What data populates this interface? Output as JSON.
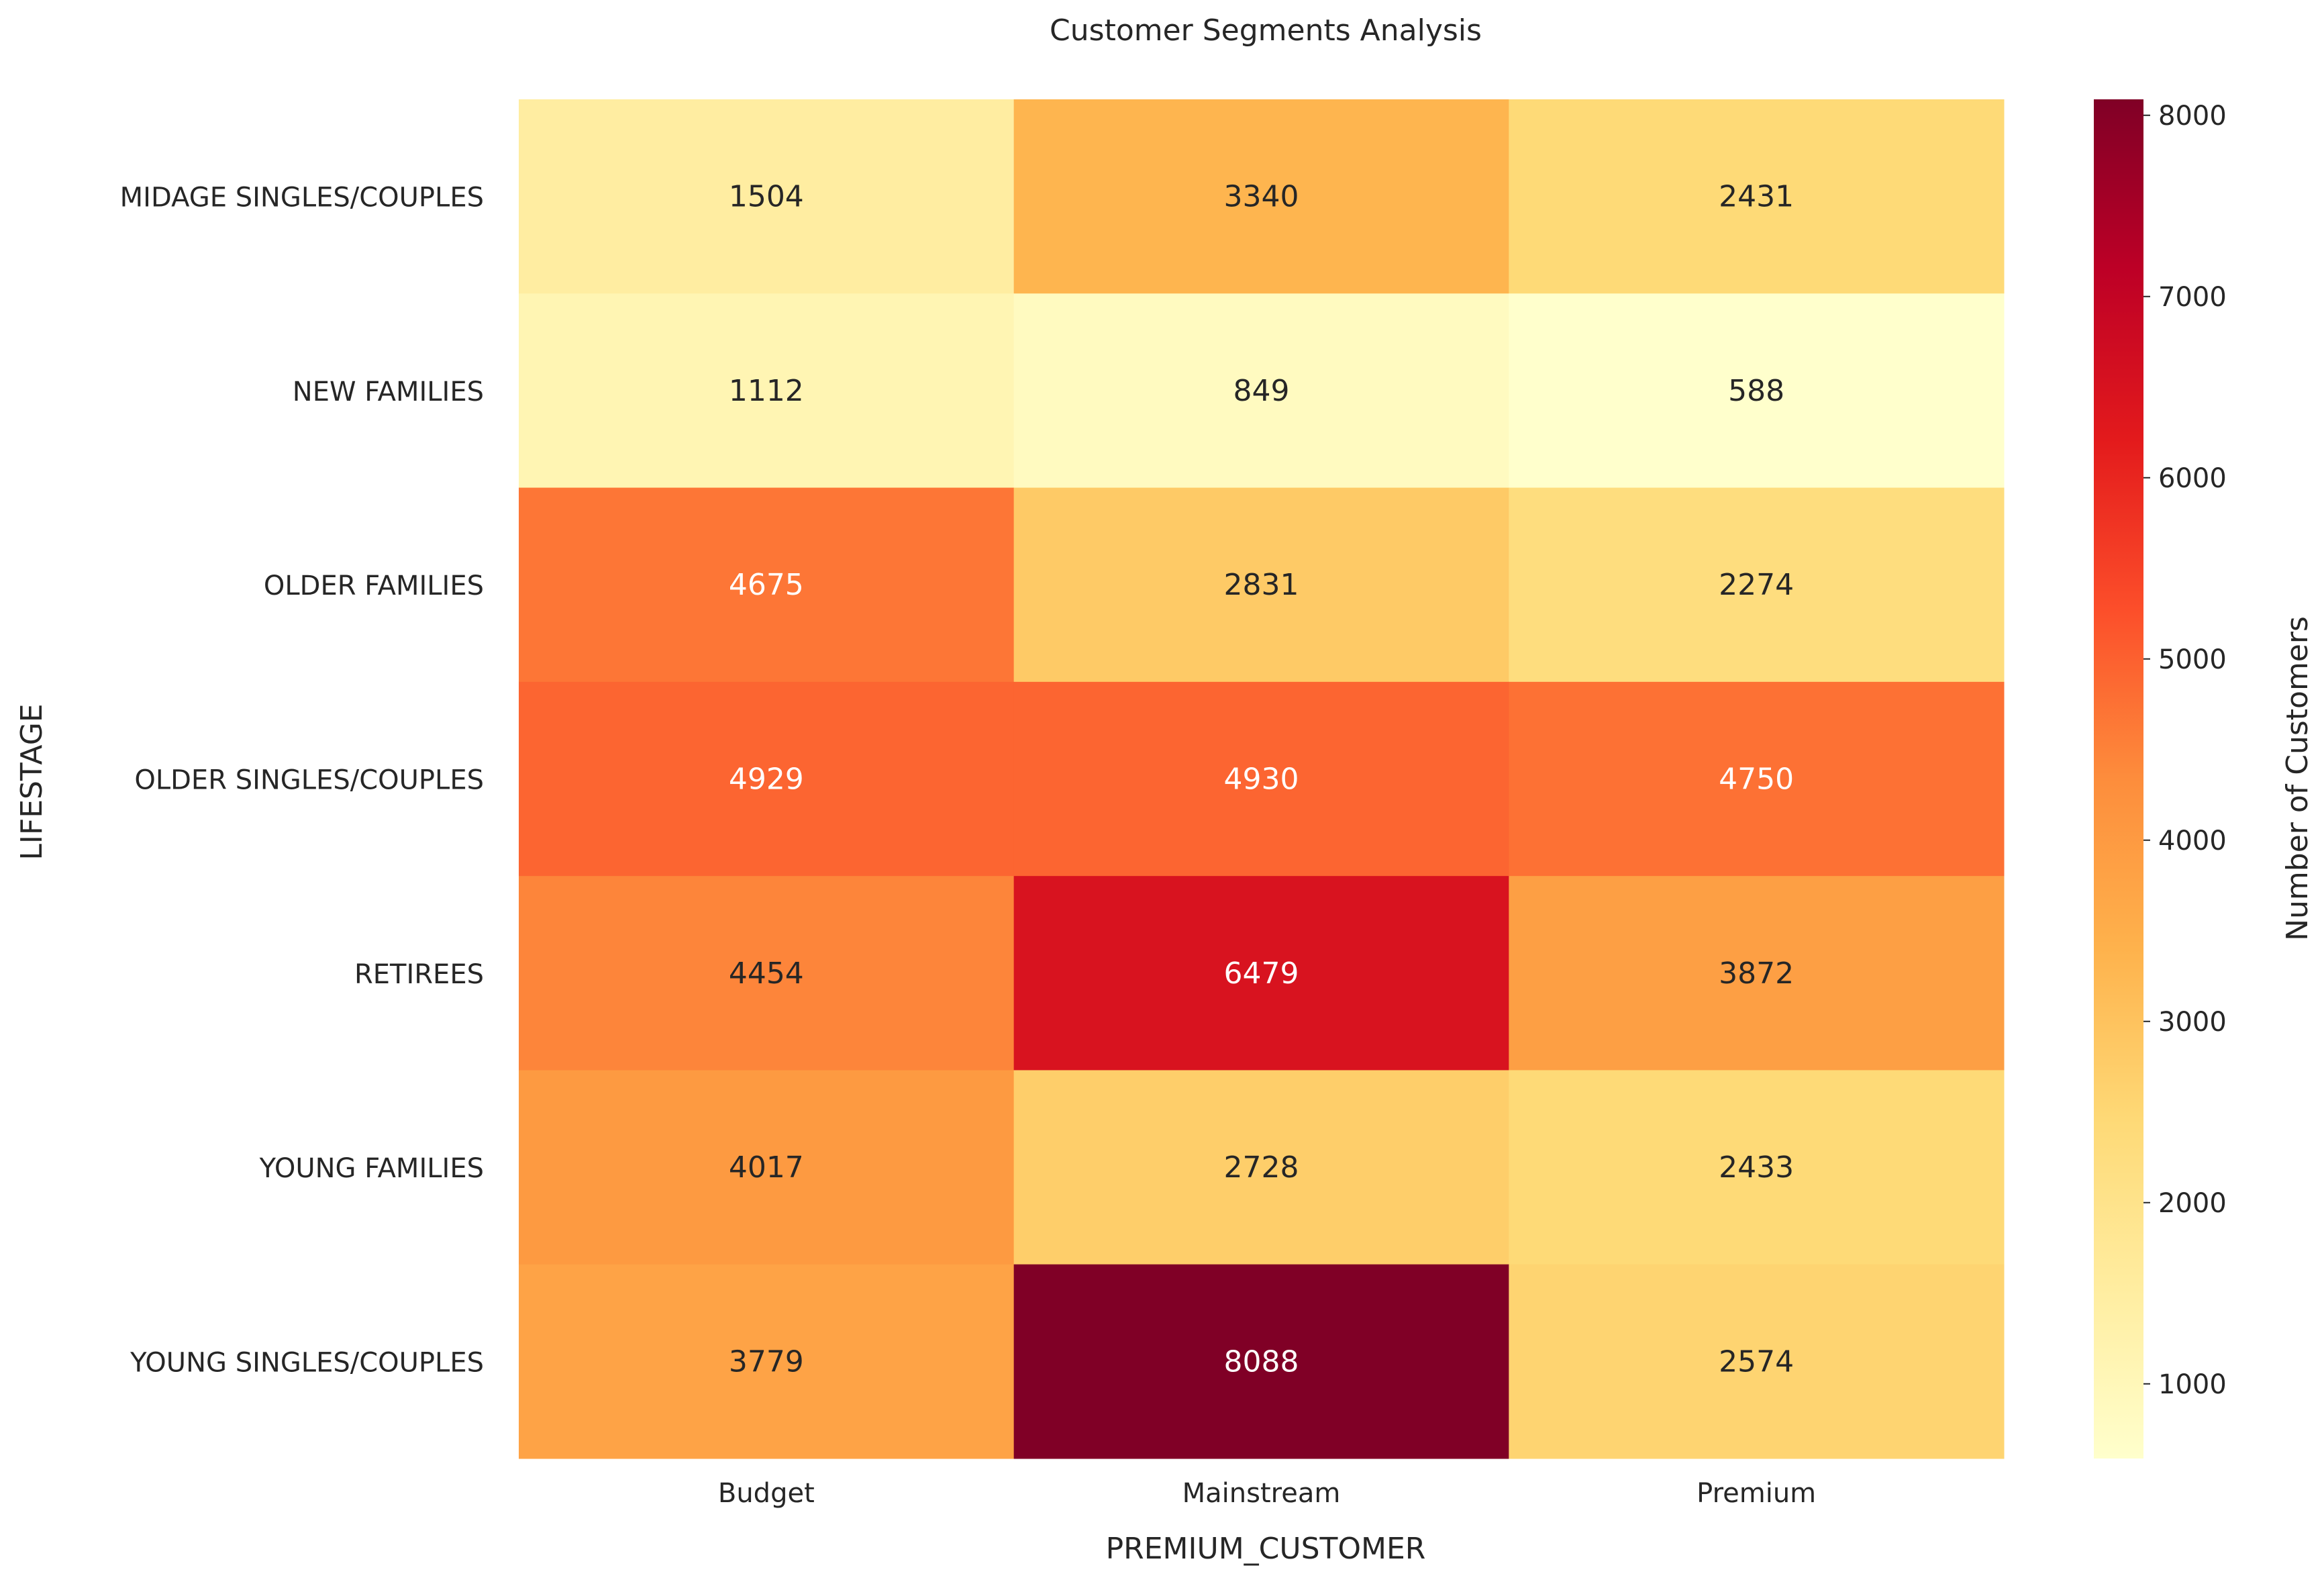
{
  "chart_data": {
    "type": "heatmap",
    "title": "Customer Segments Analysis",
    "xlabel": "PREMIUM_CUSTOMER",
    "ylabel": "LIFESTAGE",
    "x_categories": [
      "Budget",
      "Mainstream",
      "Premium"
    ],
    "y_categories": [
      "MIDAGE SINGLES/COUPLES",
      "NEW FAMILIES",
      "OLDER FAMILIES",
      "OLDER SINGLES/COUPLES",
      "RETIREES",
      "YOUNG FAMILIES",
      "YOUNG SINGLES/COUPLES"
    ],
    "values": [
      [
        1504,
        3340,
        2431
      ],
      [
        1112,
        849,
        588
      ],
      [
        4675,
        2831,
        2274
      ],
      [
        4929,
        4930,
        4750
      ],
      [
        4454,
        6479,
        3872
      ],
      [
        4017,
        2728,
        2433
      ],
      [
        3779,
        8088,
        2574
      ]
    ],
    "colorbar": {
      "label": "Number of Customers",
      "min": 588,
      "max": 8088,
      "ticks": [
        1000,
        2000,
        3000,
        4000,
        5000,
        6000,
        7000,
        8000
      ]
    },
    "colormap": "YlOrRd"
  }
}
